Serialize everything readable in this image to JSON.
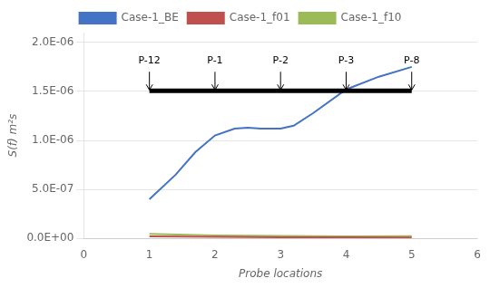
{
  "chart_data": {
    "type": "line",
    "xlabel": "Probe locations",
    "ylabel": "S(f) m²s",
    "xlim": [
      0,
      6
    ],
    "ylim": [
      0,
      2.1e-06
    ],
    "xticks": [
      0,
      1,
      2,
      3,
      4,
      5,
      6
    ],
    "yticks": [
      {
        "value": 0.0,
        "label": "0.0E+00"
      },
      {
        "value": 5e-07,
        "label": "5.0E-07"
      },
      {
        "value": 1e-06,
        "label": "1.0E-06"
      },
      {
        "value": 1.5e-06,
        "label": "1.5E-06"
      },
      {
        "value": 2e-06,
        "label": "2.0E-06"
      }
    ],
    "grid": "y",
    "legend": "top",
    "series": [
      {
        "name": "Case-1_BE",
        "color": "#4472C4",
        "x": [
          1.0,
          1.4,
          1.7,
          2.0,
          2.3,
          2.5,
          2.7,
          3.0,
          3.2,
          3.5,
          4.0,
          4.5,
          5.0
        ],
        "values": [
          4e-07,
          6.5e-07,
          8.8e-07,
          1.05e-06,
          1.12e-06,
          1.13e-06,
          1.12e-06,
          1.12e-06,
          1.15e-06,
          1.28e-06,
          1.52e-06,
          1.65e-06,
          1.75e-06
        ]
      },
      {
        "name": "Case-1_f01",
        "color": "#C0504D",
        "x": [
          1.0,
          2.0,
          3.0,
          4.0,
          5.0
        ],
        "values": [
          2e-08,
          1.5e-08,
          1.2e-08,
          1e-08,
          8e-09
        ]
      },
      {
        "name": "Case-1_f10",
        "color": "#9BBB59",
        "x": [
          1.0,
          2.0,
          3.0,
          4.0,
          5.0
        ],
        "values": [
          4.5e-08,
          3e-08,
          2.5e-08,
          2e-08,
          2.2e-08
        ]
      }
    ],
    "bar": {
      "x": [
        1.0,
        5.0
      ],
      "y": 1.505e-06,
      "color": "black"
    },
    "annotations": [
      {
        "text": "P-12",
        "x": 1.0,
        "y": 1.76e-06
      },
      {
        "text": "P-1",
        "x": 2.0,
        "y": 1.76e-06
      },
      {
        "text": "P-2",
        "x": 3.0,
        "y": 1.76e-06
      },
      {
        "text": "P-3",
        "x": 4.0,
        "y": 1.76e-06
      },
      {
        "text": "P-8",
        "x": 5.0,
        "y": 1.76e-06
      }
    ],
    "arrows": [
      {
        "x": 1.0,
        "y_from": 1.7e-06,
        "y_to": 1.515e-06
      },
      {
        "x": 2.0,
        "y_from": 1.7e-06,
        "y_to": 1.515e-06
      },
      {
        "x": 3.0,
        "y_from": 1.7e-06,
        "y_to": 1.515e-06
      },
      {
        "x": 4.0,
        "y_from": 1.7e-06,
        "y_to": 1.515e-06
      },
      {
        "x": 5.0,
        "y_from": 1.7e-06,
        "y_to": 1.515e-06
      }
    ]
  }
}
